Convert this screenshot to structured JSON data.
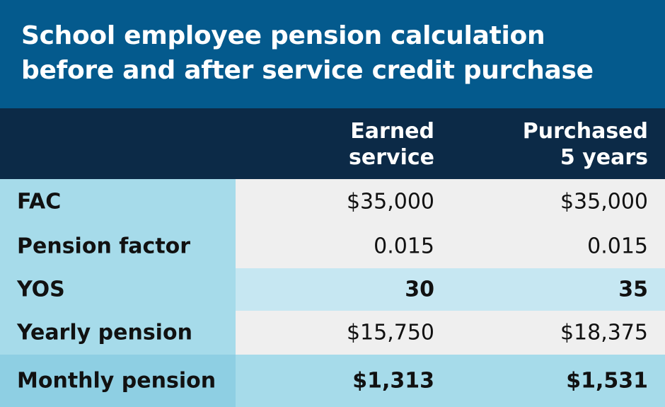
{
  "chart_data": {
    "type": "table",
    "title_lines": [
      "School employee pension calculation",
      "before and after service credit purchase"
    ],
    "columns": [
      "",
      "Earned\nservice",
      "Purchased\n5 years"
    ],
    "rows": [
      {
        "label": "FAC",
        "earned": "$35,000",
        "purchased": "$35,000"
      },
      {
        "label": "Pension factor",
        "earned": "0.015",
        "purchased": "0.015"
      },
      {
        "label": "YOS",
        "earned": "30",
        "purchased": "35"
      },
      {
        "label": "Yearly pension",
        "earned": "$15,750",
        "purchased": "$18,375"
      },
      {
        "label": "Monthly pension",
        "earned": "$1,313",
        "purchased": "$1,531"
      }
    ]
  },
  "colors": {
    "title_bg": "#045a8d",
    "header_bg": "#0c2a47",
    "label_col_bg": "#a6dbea",
    "row_light": "#efefef",
    "row_highlight": "#c6e7f2",
    "row_total": "#a6dbea"
  }
}
